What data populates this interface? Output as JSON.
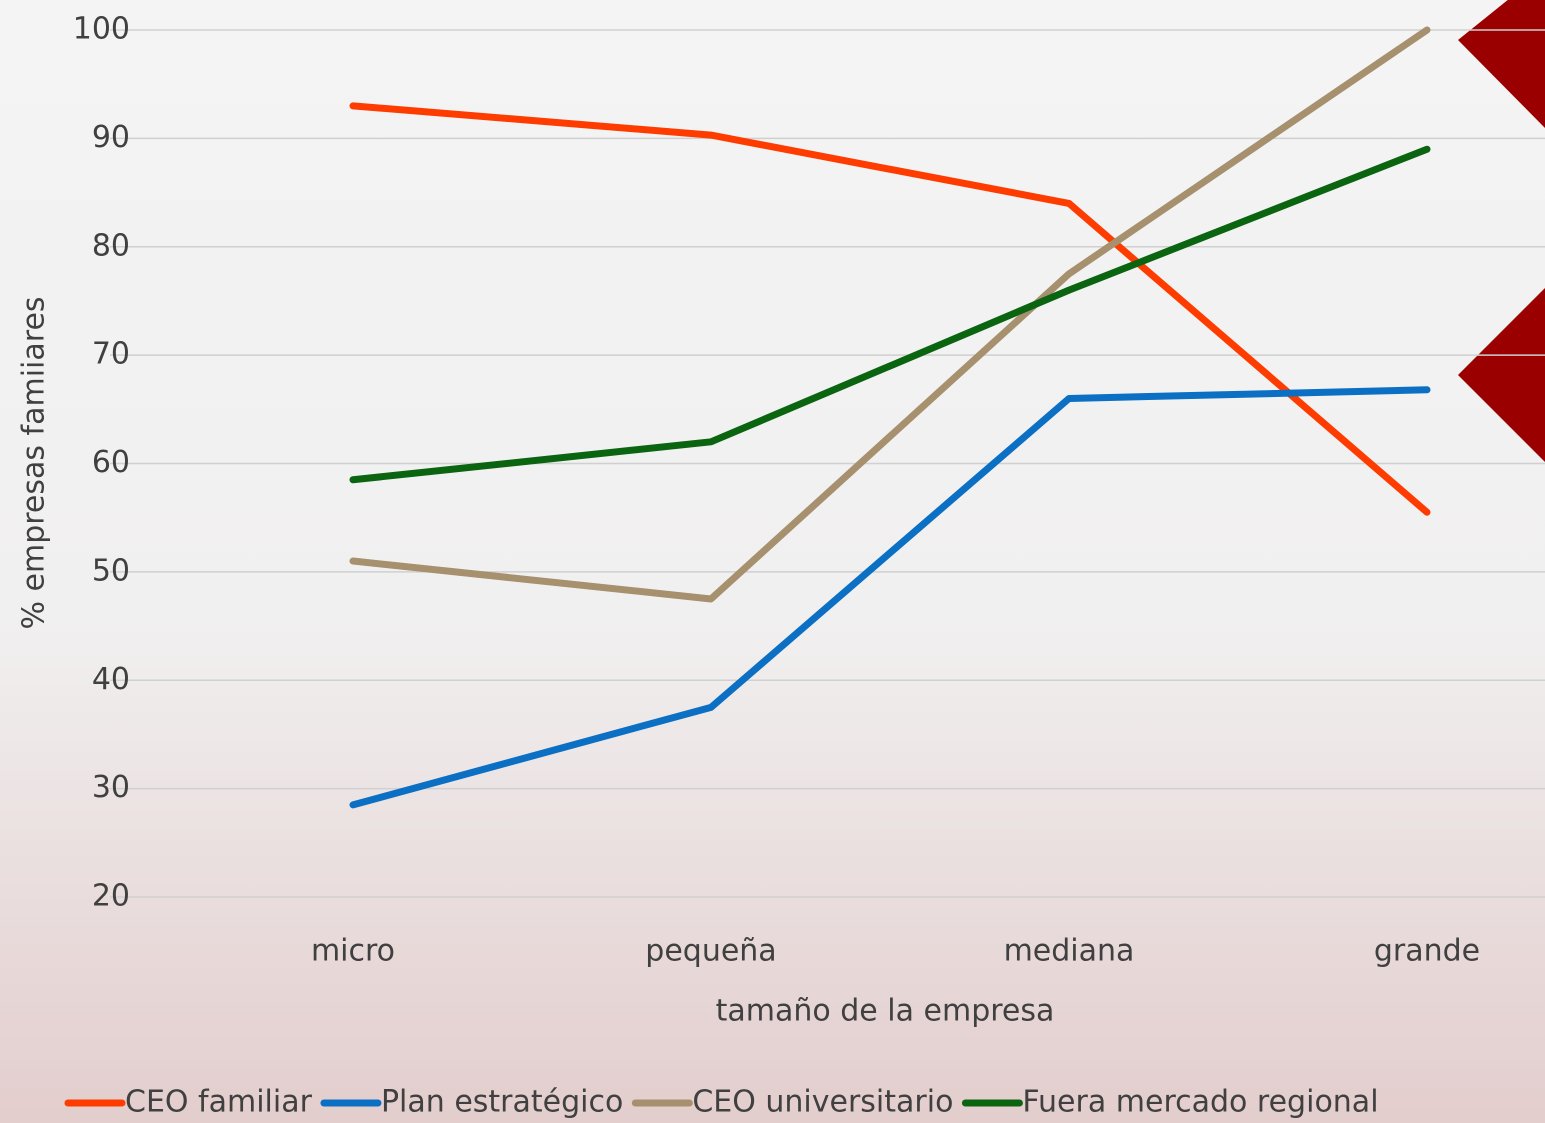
{
  "chart_data": {
    "type": "line",
    "xlabel": "tamaño de la empresa",
    "ylabel": "% empresas famiiares",
    "categories": [
      "micro",
      "pequeña",
      "mediana",
      "grande"
    ],
    "series": [
      {
        "name": "CEO familiar",
        "color": "#ff3c00",
        "values": [
          93,
          90.3,
          84,
          55.5
        ]
      },
      {
        "name": "Plan estratégico",
        "color": "#0b6fc4",
        "values": [
          28.5,
          37.5,
          66,
          66.8
        ]
      },
      {
        "name": "CEO universitario",
        "color": "#a6906e",
        "values": [
          51,
          47.5,
          77.5,
          100
        ]
      },
      {
        "name": "Fuera mercado regional",
        "color": "#0a6410",
        "values": [
          58.5,
          62,
          76,
          89
        ]
      }
    ],
    "ylim": [
      20,
      100
    ],
    "yticks": [
      20,
      30,
      40,
      50,
      60,
      70,
      80,
      90,
      100
    ],
    "grid": true,
    "legend": "bottom"
  }
}
